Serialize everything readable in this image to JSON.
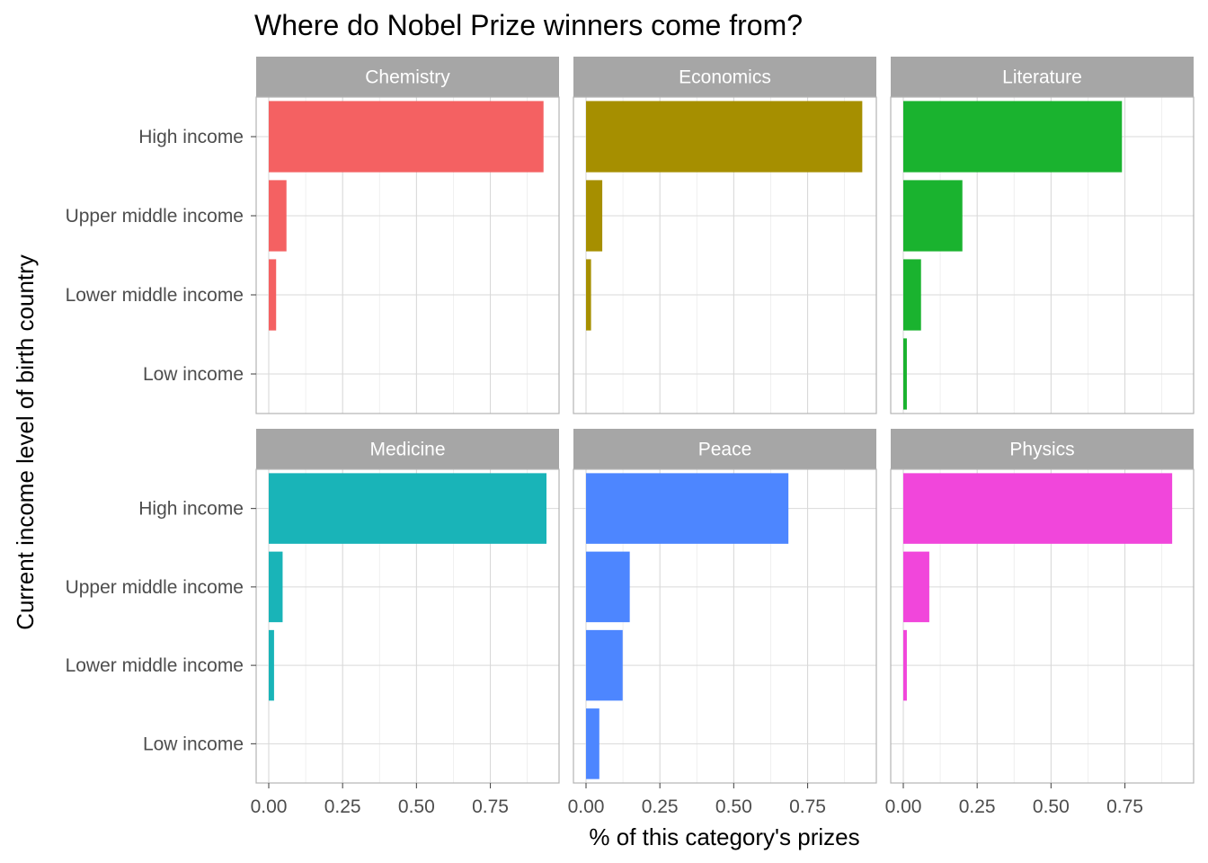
{
  "chart_data": {
    "type": "bar",
    "orientation": "horizontal",
    "facet": "wrap",
    "title": "Where do Nobel Prize winners come from?",
    "xlabel": "% of this category's prizes",
    "ylabel": "Current income level of birth country",
    "xlim": [
      0,
      0.94
    ],
    "x_ticks": [
      0,
      0.25,
      0.5,
      0.75
    ],
    "x_tick_labels": [
      "0.00",
      "0.25",
      "0.50",
      "0.75"
    ],
    "categories": [
      "High income",
      "Upper middle income",
      "Lower middle income",
      "Low income"
    ],
    "grid": true,
    "legend": "none",
    "panels": [
      {
        "name": "Chemistry",
        "color": "#F46162",
        "values": [
          0.93,
          0.06,
          0.025,
          0.0
        ]
      },
      {
        "name": "Economics",
        "color": "#A68F00",
        "values": [
          0.935,
          0.055,
          0.017,
          0.0
        ]
      },
      {
        "name": "Literature",
        "color": "#1AB32F",
        "values": [
          0.74,
          0.2,
          0.06,
          0.012
        ]
      },
      {
        "name": "Medicine",
        "color": "#19B4B8",
        "values": [
          0.94,
          0.047,
          0.018,
          0.0
        ]
      },
      {
        "name": "Peace",
        "color": "#4D86FF",
        "values": [
          0.685,
          0.148,
          0.124,
          0.045
        ]
      },
      {
        "name": "Physics",
        "color": "#F146DB",
        "values": [
          0.91,
          0.088,
          0.012,
          0.0
        ]
      }
    ]
  }
}
